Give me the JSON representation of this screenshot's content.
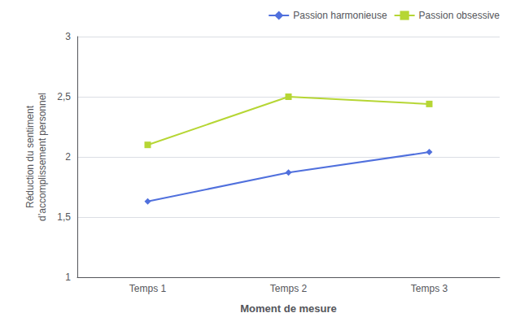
{
  "chart_data": {
    "type": "line",
    "categories": [
      "Temps 1",
      "Temps 2",
      "Temps 3"
    ],
    "series": [
      {
        "name": "Passion harmonieuse",
        "marker": "diamond",
        "values": [
          1.63,
          1.87,
          2.04
        ]
      },
      {
        "name": "Passion obsessive",
        "marker": "square",
        "values": [
          2.1,
          2.5,
          2.44
        ]
      }
    ],
    "xlabel": "Moment de mesure",
    "ylabel": "Réduction du sentiment\nd’accomplissement personnel",
    "ylim": [
      1,
      3
    ],
    "yticks": [
      1,
      {
        "value": 1.5,
        "label": "1,5"
      },
      2,
      {
        "value": 2.5,
        "label": "2,5"
      },
      3
    ],
    "grid": true,
    "legend": "upper right"
  }
}
